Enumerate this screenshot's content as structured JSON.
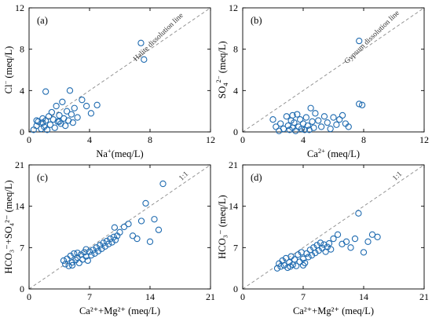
{
  "chart_data": [
    {
      "id": "a",
      "type": "scatter",
      "panel_label": "(a)",
      "xlabel": {
        "base": "Na",
        "sup": "+",
        "rest": "(meq/L)"
      },
      "ylabel": {
        "base": "Cl",
        "sup": "−",
        "rest": " (meq/L)"
      },
      "xlim": [
        0,
        12
      ],
      "ylim": [
        0,
        12
      ],
      "xticks": [
        "0",
        "4",
        "8",
        "12"
      ],
      "yticks": [
        "0",
        "4",
        "8",
        "12"
      ],
      "ref_line_label": "Halite dissolution line",
      "points": [
        [
          0.3,
          0.2
        ],
        [
          0.5,
          0.6
        ],
        [
          0.6,
          1.0
        ],
        [
          0.8,
          0.3
        ],
        [
          0.9,
          0.9
        ],
        [
          1.0,
          0.5
        ],
        [
          1.1,
          1.1
        ],
        [
          1.2,
          0.2
        ],
        [
          1.3,
          1.5
        ],
        [
          1.4,
          0.7
        ],
        [
          1.5,
          1.9
        ],
        [
          1.6,
          1.2
        ],
        [
          1.7,
          0.4
        ],
        [
          1.8,
          2.5
        ],
        [
          1.9,
          1.0
        ],
        [
          2.0,
          1.6
        ],
        [
          2.1,
          0.8
        ],
        [
          2.2,
          2.9
        ],
        [
          2.3,
          1.3
        ],
        [
          2.4,
          0.6
        ],
        [
          2.5,
          2.0
        ],
        [
          2.6,
          1.1
        ],
        [
          2.7,
          4.0
        ],
        [
          2.8,
          1.7
        ],
        [
          2.9,
          0.9
        ],
        [
          3.0,
          2.3
        ],
        [
          3.2,
          1.4
        ],
        [
          3.5,
          3.1
        ],
        [
          3.8,
          2.5
        ],
        [
          4.1,
          1.8
        ],
        [
          4.5,
          2.6
        ],
        [
          1.1,
          3.9
        ],
        [
          0.5,
          1.1
        ],
        [
          0.9,
          1.3
        ],
        [
          2.0,
          1.0
        ],
        [
          7.4,
          8.6
        ],
        [
          7.6,
          7.0
        ]
      ]
    },
    {
      "id": "b",
      "type": "scatter",
      "panel_label": "(b)",
      "xlabel": {
        "base": "Ca",
        "sup": "2+",
        "rest": " (meq/L)"
      },
      "ylabel": {
        "base": "SO",
        "sub": "4",
        "sup": "2−",
        "rest": " (meq/L)"
      },
      "xlim": [
        0,
        12
      ],
      "ylim": [
        0,
        12
      ],
      "xticks": [
        "0",
        "4",
        "8",
        "12"
      ],
      "yticks": [
        "0",
        "4",
        "8",
        "12"
      ],
      "ref_line_label": "Gypsum dissolution line",
      "points": [
        [
          2.0,
          1.2
        ],
        [
          2.2,
          0.5
        ],
        [
          2.4,
          0.1
        ],
        [
          2.5,
          0.8
        ],
        [
          2.7,
          0.3
        ],
        [
          2.9,
          1.5
        ],
        [
          3.0,
          0.6
        ],
        [
          3.1,
          0.2
        ],
        [
          3.2,
          1.1
        ],
        [
          3.3,
          0.4
        ],
        [
          3.4,
          0.9
        ],
        [
          3.5,
          0.1
        ],
        [
          3.6,
          1.7
        ],
        [
          3.7,
          0.5
        ],
        [
          3.8,
          1.2
        ],
        [
          3.9,
          0.3
        ],
        [
          4.0,
          0.8
        ],
        [
          4.1,
          0.2
        ],
        [
          4.2,
          1.4
        ],
        [
          4.3,
          0.6
        ],
        [
          4.5,
          2.3
        ],
        [
          4.6,
          1.0
        ],
        [
          4.7,
          0.4
        ],
        [
          4.8,
          1.8
        ],
        [
          5.0,
          1.1
        ],
        [
          5.2,
          0.5
        ],
        [
          5.4,
          1.5
        ],
        [
          5.6,
          0.9
        ],
        [
          5.8,
          0.3
        ],
        [
          6.0,
          1.4
        ],
        [
          6.2,
          0.7
        ],
        [
          6.4,
          1.2
        ],
        [
          6.6,
          1.6
        ],
        [
          6.8,
          0.8
        ],
        [
          7.0,
          0.5
        ],
        [
          7.7,
          2.7
        ],
        [
          7.9,
          2.6
        ],
        [
          7.7,
          8.8
        ],
        [
          4.4,
          0.2
        ],
        [
          3.3,
          1.6
        ]
      ]
    },
    {
      "id": "c",
      "type": "scatter",
      "panel_label": "(c)",
      "xlabel": {
        "text": "Ca²⁺+Mg²⁺ (meq/L)"
      },
      "ylabel": {
        "text": "HCO₃⁻+SO₄²⁻ (meq/L)"
      },
      "xlim": [
        0,
        21
      ],
      "ylim": [
        0,
        21
      ],
      "xticks": [
        "0",
        "7",
        "14",
        "21"
      ],
      "yticks": [
        "0",
        "7",
        "14",
        "21"
      ],
      "ref_line_label": "1:1",
      "points": [
        [
          4.0,
          4.8
        ],
        [
          4.2,
          4.2
        ],
        [
          4.4,
          5.1
        ],
        [
          4.6,
          3.9
        ],
        [
          4.8,
          5.6
        ],
        [
          5.0,
          4.5
        ],
        [
          5.2,
          6.0
        ],
        [
          5.4,
          4.9
        ],
        [
          5.6,
          5.3
        ],
        [
          5.8,
          4.4
        ],
        [
          6.0,
          5.8
        ],
        [
          6.2,
          5.0
        ],
        [
          6.4,
          6.2
        ],
        [
          6.6,
          5.5
        ],
        [
          6.8,
          4.8
        ],
        [
          7.0,
          6.3
        ],
        [
          7.2,
          5.7
        ],
        [
          7.4,
          6.6
        ],
        [
          7.6,
          6.0
        ],
        [
          7.8,
          7.0
        ],
        [
          8.0,
          6.4
        ],
        [
          8.2,
          7.4
        ],
        [
          8.4,
          6.8
        ],
        [
          8.6,
          7.8
        ],
        [
          8.8,
          7.2
        ],
        [
          9.0,
          8.1
        ],
        [
          9.2,
          7.6
        ],
        [
          9.4,
          8.5
        ],
        [
          9.6,
          7.9
        ],
        [
          9.8,
          8.8
        ],
        [
          10.0,
          8.3
        ],
        [
          10.2,
          9.0
        ],
        [
          10.5,
          9.6
        ],
        [
          11.0,
          10.5
        ],
        [
          11.5,
          11.0
        ],
        [
          12.0,
          9.0
        ],
        [
          12.5,
          8.5
        ],
        [
          13.0,
          11.5
        ],
        [
          13.5,
          14.5
        ],
        [
          14.0,
          8.0
        ],
        [
          14.5,
          11.8
        ],
        [
          15.0,
          10.0
        ],
        [
          15.5,
          17.8
        ],
        [
          5.0,
          4.0
        ],
        [
          5.6,
          6.1
        ],
        [
          6.6,
          6.7
        ],
        [
          9.9,
          10.4
        ]
      ]
    },
    {
      "id": "d",
      "type": "scatter",
      "panel_label": "(d)",
      "xlabel": {
        "text": "Ca²⁺+Mg²⁺ (meq/L)"
      },
      "ylabel": {
        "text": "HCO₃⁻ (meq/L)"
      },
      "xlim": [
        0,
        21
      ],
      "ylim": [
        0,
        21
      ],
      "xticks": [
        "0",
        "7",
        "14",
        "21"
      ],
      "yticks": [
        "0",
        "7",
        "14",
        "21"
      ],
      "ref_line_label": "1:1",
      "points": [
        [
          4.0,
          3.5
        ],
        [
          4.2,
          4.3
        ],
        [
          4.4,
          3.8
        ],
        [
          4.6,
          4.8
        ],
        [
          4.8,
          4.0
        ],
        [
          5.0,
          5.2
        ],
        [
          5.2,
          3.6
        ],
        [
          5.4,
          4.5
        ],
        [
          5.6,
          5.5
        ],
        [
          5.8,
          4.1
        ],
        [
          6.0,
          5.0
        ],
        [
          6.2,
          3.9
        ],
        [
          6.4,
          5.8
        ],
        [
          6.6,
          4.6
        ],
        [
          6.8,
          6.2
        ],
        [
          7.0,
          5.1
        ],
        [
          7.2,
          4.4
        ],
        [
          7.4,
          6.0
        ],
        [
          7.6,
          5.4
        ],
        [
          7.8,
          6.6
        ],
        [
          8.0,
          5.7
        ],
        [
          8.2,
          7.0
        ],
        [
          8.4,
          6.1
        ],
        [
          8.6,
          7.4
        ],
        [
          8.8,
          6.5
        ],
        [
          9.0,
          7.8
        ],
        [
          9.2,
          6.9
        ],
        [
          9.4,
          7.5
        ],
        [
          9.6,
          6.3
        ],
        [
          9.8,
          7.1
        ],
        [
          10.0,
          7.7
        ],
        [
          10.2,
          6.7
        ],
        [
          10.5,
          8.5
        ],
        [
          11.0,
          9.2
        ],
        [
          11.5,
          7.6
        ],
        [
          12.0,
          8.0
        ],
        [
          12.5,
          7.0
        ],
        [
          13.0,
          8.5
        ],
        [
          13.4,
          12.8
        ],
        [
          14.0,
          6.2
        ],
        [
          14.5,
          8.0
        ],
        [
          15.0,
          9.2
        ],
        [
          15.6,
          8.8
        ],
        [
          5.5,
          3.8
        ],
        [
          7.0,
          4.0
        ]
      ]
    }
  ]
}
